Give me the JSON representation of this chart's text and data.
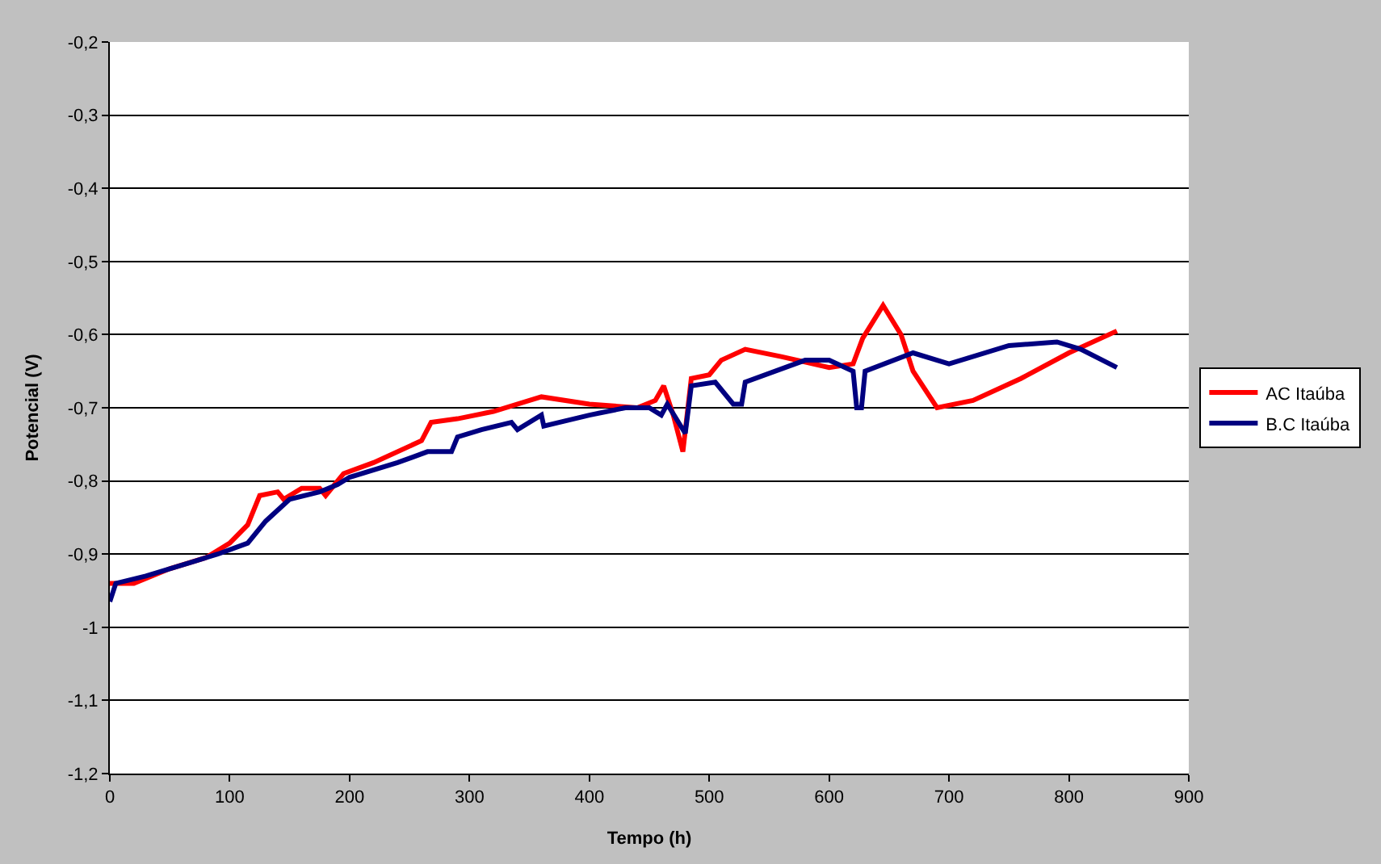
{
  "chart_data": {
    "type": "line",
    "xlabel": "Tempo (h)",
    "ylabel": "Potencial (V)",
    "xlim": [
      0,
      900
    ],
    "xticks": [
      0,
      100,
      200,
      300,
      400,
      500,
      600,
      700,
      800,
      900
    ],
    "ylim": [
      -1.2,
      -0.2
    ],
    "yticks": [
      {
        "value": -1.2,
        "label": "-1,2"
      },
      {
        "value": -1.1,
        "label": "-1,1"
      },
      {
        "value": -1,
        "label": "-1"
      },
      {
        "value": -0.9,
        "label": "-0,9"
      },
      {
        "value": -0.8,
        "label": "-0,8"
      },
      {
        "value": -0.7,
        "label": "-0,7"
      },
      {
        "value": -0.6,
        "label": "-0,6"
      },
      {
        "value": -0.5,
        "label": "-0,5"
      },
      {
        "value": -0.4,
        "label": "-0,4"
      },
      {
        "value": -0.3,
        "label": "-0,3"
      },
      {
        "value": -0.2,
        "label": "-0,2"
      }
    ],
    "grid": "y",
    "legend": "right",
    "marker": "none",
    "line_style": "solid",
    "series": [
      {
        "name": "AC Itaúba",
        "color": "#ff0000",
        "x": [
          0,
          20,
          50,
          80,
          100,
          115,
          125,
          140,
          145,
          160,
          175,
          180,
          195,
          220,
          260,
          268,
          290,
          320,
          360,
          400,
          440,
          455,
          462,
          470,
          478,
          485,
          500,
          510,
          530,
          560,
          600,
          620,
          628,
          645,
          660,
          670,
          690,
          720,
          760,
          800,
          840
        ],
        "values": [
          -0.94,
          -0.94,
          -0.92,
          -0.905,
          -0.885,
          -0.86,
          -0.82,
          -0.815,
          -0.825,
          -0.81,
          -0.81,
          -0.82,
          -0.79,
          -0.775,
          -0.745,
          -0.72,
          -0.715,
          -0.705,
          -0.685,
          -0.695,
          -0.7,
          -0.69,
          -0.67,
          -0.71,
          -0.76,
          -0.66,
          -0.655,
          -0.635,
          -0.62,
          -0.63,
          -0.645,
          -0.64,
          -0.605,
          -0.56,
          -0.6,
          -0.65,
          -0.7,
          -0.69,
          -0.66,
          -0.625,
          -0.595
        ]
      },
      {
        "name": "B.C Itaúba",
        "color": "#000080",
        "x": [
          0,
          5,
          30,
          70,
          90,
          115,
          130,
          150,
          175,
          190,
          200,
          240,
          265,
          285,
          290,
          310,
          335,
          340,
          360,
          362,
          400,
          430,
          450,
          460,
          465,
          480,
          485,
          505,
          520,
          527,
          530,
          580,
          600,
          620,
          623,
          627,
          630,
          670,
          700,
          750,
          790,
          810,
          840
        ],
        "values": [
          -0.965,
          -0.94,
          -0.93,
          -0.91,
          -0.9,
          -0.885,
          -0.855,
          -0.825,
          -0.815,
          -0.805,
          -0.795,
          -0.775,
          -0.76,
          -0.76,
          -0.74,
          -0.73,
          -0.72,
          -0.73,
          -0.71,
          -0.725,
          -0.71,
          -0.7,
          -0.7,
          -0.71,
          -0.695,
          -0.735,
          -0.67,
          -0.665,
          -0.695,
          -0.695,
          -0.665,
          -0.635,
          -0.635,
          -0.65,
          -0.7,
          -0.7,
          -0.65,
          -0.625,
          -0.64,
          -0.615,
          -0.61,
          -0.62,
          -0.645
        ]
      }
    ]
  }
}
